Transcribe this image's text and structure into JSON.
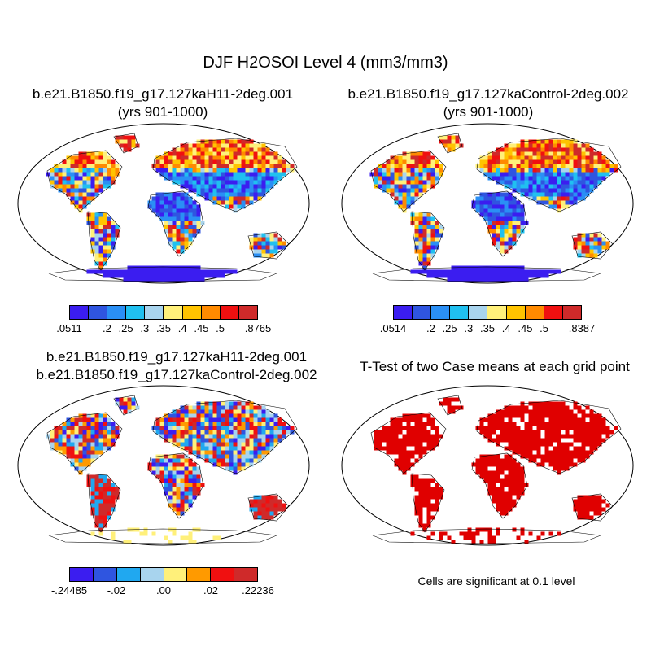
{
  "main_title": "DJF H2OSOI Level 4 (mm3/mm3)",
  "panels": {
    "top_left": {
      "title_line1": "b.e21.B1850.f19_g17.127kaH11-2deg.001",
      "title_line2": "(yrs 901-1000)",
      "colorbar_labels": [
        ".0511",
        ".2",
        ".25",
        ".3",
        ".35",
        ".4",
        ".45",
        ".5",
        ".8765"
      ]
    },
    "top_right": {
      "title_line1": "b.e21.B1850.f19_g17.127kaControl-2deg.002",
      "title_line2": "(yrs 901-1000)",
      "colorbar_labels": [
        ".0514",
        ".2",
        ".25",
        ".3",
        ".35",
        ".4",
        ".45",
        ".5",
        ".8387"
      ]
    },
    "bottom_left": {
      "title_line1": "b.e21.B1850.f19_g17.127kaH11-2deg.001",
      "title_line2": "b.e21.B1850.f19_g17.127kaControl-2deg.002",
      "colorbar_labels": [
        "-.24485",
        "-.02",
        ".00",
        ".02",
        ".22236"
      ]
    },
    "bottom_right": {
      "title": "T-Test of two Case means at each grid point",
      "note": "Cells are significant at 0.1 level"
    }
  },
  "colors": {
    "abs_palette": [
      "#3b1df0",
      "#2f55e0",
      "#2a8ff5",
      "#20c0f0",
      "#a8d4ee",
      "#fff07a",
      "#ffc400",
      "#ff8a00",
      "#f01010",
      "#cf2a2a"
    ],
    "diff_palette": [
      "#3b1df0",
      "#2f55e0",
      "#20a8f0",
      "#a8d4ee",
      "#fff07a",
      "#ff9a00",
      "#f01010",
      "#cf2a2a"
    ],
    "significant": "#e00000",
    "land_outline": "#000000"
  }
}
